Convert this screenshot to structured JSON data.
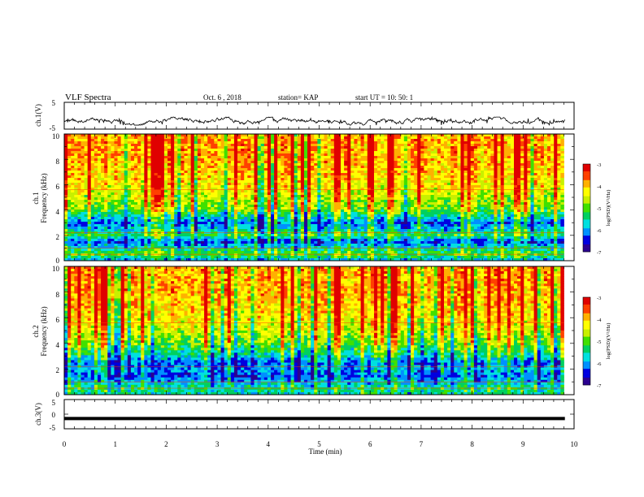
{
  "header": {
    "title": "VLF Spectra",
    "date": "Oct. 6 , 2018",
    "station": "station= KAP",
    "start": "start UT = 10: 50: 1"
  },
  "colors": {
    "spec_ramp": [
      "#2a0090",
      "#0000e0",
      "#0090ff",
      "#00e0e0",
      "#00d060",
      "#40e000",
      "#c8f000",
      "#ffff00",
      "#ffb000",
      "#ff4000",
      "#e00000"
    ],
    "trace": "#000000",
    "axes": "#000000"
  },
  "chart_data": [
    {
      "type": "line",
      "name": "ch1-waveform",
      "ylabel": "ch.1(V)",
      "ylim": [
        -5,
        5
      ],
      "yticks": [
        5,
        -5
      ],
      "xlim": [
        0,
        10
      ],
      "note_values": "waveform of VLF channel 1, roughly -3.5 to -0.5 V with spiky variation",
      "waveform_range": [
        -3.5,
        -0.5
      ]
    },
    {
      "type": "heatmap",
      "name": "ch1-spectrogram",
      "ylabel": "ch.1",
      "ylabel2": "Frequency (kHz)",
      "xlim": [
        0,
        9.8
      ],
      "ylim": [
        0,
        10
      ],
      "yticks": [
        0,
        2,
        4,
        6,
        8,
        10
      ],
      "colorbar": {
        "label": "log(PSD)(V²/Hz)",
        "ticks": [
          "-3",
          "-4",
          "-5",
          "-6",
          "-7"
        ],
        "range": [
          -7,
          -3
        ]
      },
      "frequency_profile_kHz": [
        {
          "f": 0.0,
          "level": -6.0
        },
        {
          "f": 0.5,
          "level": -5.0
        },
        {
          "f": 1.0,
          "level": -5.6
        },
        {
          "f": 1.5,
          "level": -6.4
        },
        {
          "f": 2.0,
          "level": -5.2
        },
        {
          "f": 2.5,
          "level": -5.8
        },
        {
          "f": 3.0,
          "level": -6.2
        },
        {
          "f": 3.5,
          "level": -5.6
        },
        {
          "f": 4.0,
          "level": -4.9
        },
        {
          "f": 5.0,
          "level": -4.6
        },
        {
          "f": 6.0,
          "level": -4.2
        },
        {
          "f": 8.0,
          "level": -3.9
        },
        {
          "f": 10.0,
          "level": -3.9
        }
      ]
    },
    {
      "type": "heatmap",
      "name": "ch2-spectrogram",
      "ylabel": "ch.2",
      "ylabel2": "Frequency (kHz)",
      "xlim": [
        0,
        9.8
      ],
      "ylim": [
        0,
        10
      ],
      "yticks": [
        0,
        2,
        4,
        6,
        8,
        10
      ],
      "colorbar": {
        "label": "log(PSD)(V²/Hz)",
        "ticks": [
          "-3",
          "-4",
          "-5",
          "-6",
          "-7"
        ],
        "range": [
          -7,
          -3
        ]
      },
      "frequency_profile_kHz": [
        {
          "f": 0.0,
          "level": -5.6
        },
        {
          "f": 0.5,
          "level": -5.4
        },
        {
          "f": 1.0,
          "level": -5.9
        },
        {
          "f": 1.5,
          "level": -6.3
        },
        {
          "f": 2.0,
          "level": -6.0
        },
        {
          "f": 2.5,
          "level": -6.2
        },
        {
          "f": 3.0,
          "level": -5.6
        },
        {
          "f": 4.0,
          "level": -4.9
        },
        {
          "f": 5.0,
          "level": -4.5
        },
        {
          "f": 6.0,
          "level": -4.2
        },
        {
          "f": 8.0,
          "level": -3.9
        },
        {
          "f": 10.0,
          "level": -3.9
        }
      ]
    },
    {
      "type": "line",
      "name": "ch3-waveform",
      "ylabel": "ch.3(V)",
      "ylim": [
        -5,
        5
      ],
      "yticks": [
        5,
        0,
        -5
      ],
      "xlim": [
        0,
        10
      ],
      "xticks": [
        0,
        1,
        2,
        3,
        4,
        5,
        6,
        7,
        8,
        9,
        10
      ],
      "xlabel": "Time (min)",
      "waveform_value": -1.5
    }
  ]
}
